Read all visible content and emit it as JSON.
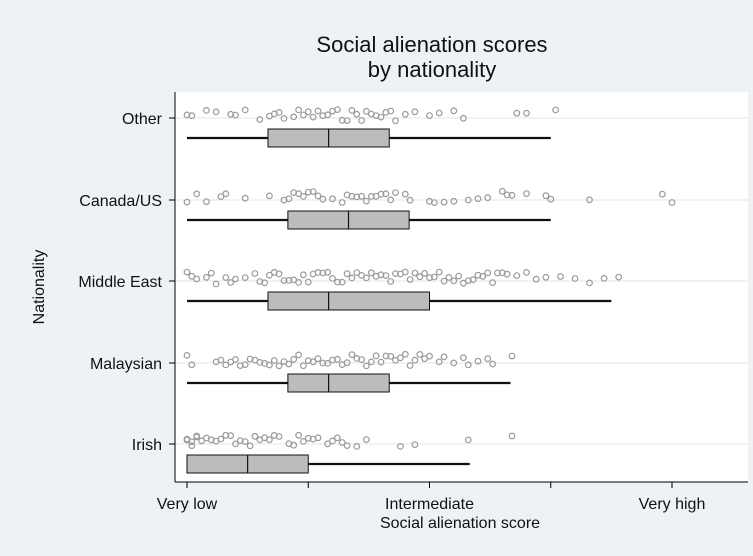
{
  "chart_data": {
    "type": "box",
    "title_lines": [
      "Social alienation scores",
      "by nationality"
    ],
    "xlabel": "Social alienation score",
    "ylabel": "Nationality",
    "x_scale": "ordinal score, 0 = Very low, 0.5 = Intermediate, 1 = Very high",
    "x_ticks": [
      {
        "value": 0,
        "label": "Very low"
      },
      {
        "value": 0.25,
        "label": ""
      },
      {
        "value": 0.5,
        "label": "Intermediate"
      },
      {
        "value": 0.75,
        "label": ""
      },
      {
        "value": 1,
        "label": "Very high"
      }
    ],
    "xlim": [
      0,
      1
    ],
    "grid": "horizontal",
    "background": "#eef1f5",
    "plot_background": "#ffffff",
    "box_fill": "#bcbcbc",
    "point_color": "#9a9a9a",
    "series": [
      {
        "category": "Other",
        "whisker_low": 0.0,
        "q1": 0.167,
        "median": 0.292,
        "q3": 0.417,
        "whisker_high": 0.75,
        "points": [
          0,
          0.01,
          0.04,
          0.06,
          0.09,
          0.1,
          0.12,
          0.15,
          0.17,
          0.18,
          0.19,
          0.2,
          0.22,
          0.23,
          0.24,
          0.25,
          0.26,
          0.27,
          0.28,
          0.29,
          0.3,
          0.31,
          0.32,
          0.33,
          0.34,
          0.35,
          0.36,
          0.37,
          0.38,
          0.39,
          0.4,
          0.41,
          0.42,
          0.43,
          0.45,
          0.47,
          0.5,
          0.52,
          0.55,
          0.57,
          0.68,
          0.7,
          0.76
        ]
      },
      {
        "category": "Canada/US",
        "whisker_low": 0.0,
        "q1": 0.208,
        "median": 0.333,
        "q3": 0.458,
        "whisker_high": 0.75,
        "points": [
          0,
          0.02,
          0.04,
          0.07,
          0.08,
          0.12,
          0.17,
          0.2,
          0.21,
          0.22,
          0.23,
          0.24,
          0.25,
          0.26,
          0.27,
          0.28,
          0.3,
          0.32,
          0.33,
          0.34,
          0.35,
          0.36,
          0.37,
          0.38,
          0.39,
          0.4,
          0.41,
          0.42,
          0.43,
          0.45,
          0.46,
          0.5,
          0.51,
          0.53,
          0.55,
          0.58,
          0.6,
          0.62,
          0.65,
          0.66,
          0.67,
          0.7,
          0.74,
          0.75,
          0.83,
          0.98,
          1.0
        ]
      },
      {
        "category": "Middle East",
        "whisker_low": 0.0,
        "q1": 0.167,
        "median": 0.292,
        "q3": 0.5,
        "whisker_high": 0.875,
        "points": [
          0,
          0.01,
          0.02,
          0.04,
          0.05,
          0.06,
          0.08,
          0.09,
          0.1,
          0.12,
          0.14,
          0.15,
          0.16,
          0.17,
          0.18,
          0.19,
          0.2,
          0.21,
          0.22,
          0.23,
          0.24,
          0.25,
          0.26,
          0.27,
          0.28,
          0.29,
          0.3,
          0.31,
          0.32,
          0.33,
          0.34,
          0.35,
          0.36,
          0.37,
          0.38,
          0.39,
          0.4,
          0.41,
          0.42,
          0.43,
          0.44,
          0.45,
          0.46,
          0.47,
          0.48,
          0.49,
          0.5,
          0.51,
          0.52,
          0.53,
          0.54,
          0.55,
          0.56,
          0.57,
          0.58,
          0.59,
          0.6,
          0.61,
          0.62,
          0.63,
          0.64,
          0.65,
          0.66,
          0.68,
          0.7,
          0.72,
          0.74,
          0.77,
          0.8,
          0.83,
          0.86,
          0.89
        ]
      },
      {
        "category": "Malaysian",
        "whisker_low": 0.0,
        "q1": 0.208,
        "median": 0.292,
        "q3": 0.417,
        "whisker_high": 0.667,
        "points": [
          0,
          0.01,
          0.06,
          0.07,
          0.08,
          0.09,
          0.1,
          0.11,
          0.12,
          0.13,
          0.14,
          0.15,
          0.16,
          0.17,
          0.18,
          0.19,
          0.2,
          0.21,
          0.22,
          0.23,
          0.24,
          0.25,
          0.26,
          0.27,
          0.28,
          0.29,
          0.3,
          0.31,
          0.32,
          0.33,
          0.34,
          0.35,
          0.36,
          0.37,
          0.38,
          0.39,
          0.4,
          0.41,
          0.42,
          0.43,
          0.44,
          0.45,
          0.46,
          0.47,
          0.48,
          0.49,
          0.5,
          0.52,
          0.53,
          0.55,
          0.57,
          0.58,
          0.6,
          0.62,
          0.63,
          0.67
        ]
      },
      {
        "category": "Irish",
        "whisker_low": 0.0,
        "q1": 0.0,
        "median": 0.125,
        "q3": 0.25,
        "whisker_high": 0.583,
        "points": [
          0,
          0.0,
          0.01,
          0.01,
          0.02,
          0.02,
          0.03,
          0.04,
          0.05,
          0.06,
          0.07,
          0.08,
          0.09,
          0.1,
          0.11,
          0.12,
          0.13,
          0.14,
          0.15,
          0.16,
          0.17,
          0.18,
          0.19,
          0.21,
          0.22,
          0.23,
          0.24,
          0.25,
          0.26,
          0.27,
          0.29,
          0.3,
          0.31,
          0.32,
          0.33,
          0.35,
          0.37,
          0.44,
          0.47,
          0.58,
          0.67
        ]
      }
    ]
  }
}
